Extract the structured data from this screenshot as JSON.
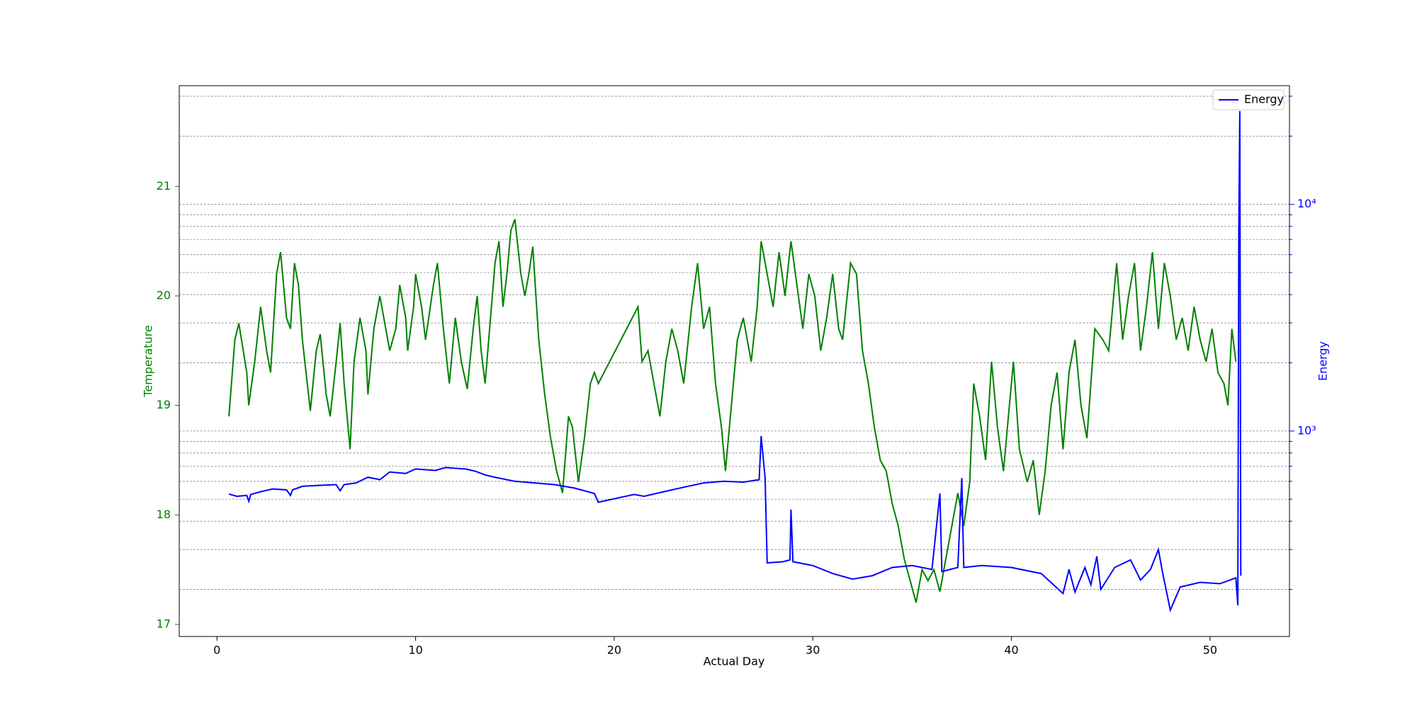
{
  "chart_data": {
    "type": "line",
    "xlabel": "Actual Day",
    "ylabel": "Temperature",
    "y2label": "Energy",
    "xlim": [
      -1.9,
      54.0
    ],
    "xticks": [
      0,
      10,
      20,
      30,
      40,
      50
    ],
    "ylim": [
      16.89,
      21.92
    ],
    "yticks": [
      17,
      18,
      19,
      20,
      21
    ],
    "ycolor": "green",
    "y2lim": [
      124,
      33400
    ],
    "y2log": true,
    "y2color": "blue",
    "y2ticks": [
      {
        "value": 1000,
        "label": "10³"
      },
      {
        "value": 10000,
        "label": "10⁴"
      }
    ],
    "y2minor_ticks": [
      200,
      300,
      400,
      500,
      600,
      700,
      800,
      900,
      2000,
      3000,
      4000,
      5000,
      6000,
      7000,
      8000,
      9000,
      20000,
      30000
    ],
    "grid_axis": "y2",
    "legend": "upper right",
    "series": [
      {
        "color": "green",
        "x": [
          0.6,
          0.9,
          1.1,
          1.5,
          1.6,
          1.9,
          2.2,
          2.5,
          2.7,
          3.0,
          3.2,
          3.5,
          3.7,
          3.9,
          4.1,
          4.3,
          4.7,
          5.0,
          5.2,
          5.5,
          5.7,
          6.0,
          6.2,
          6.4,
          6.6,
          6.7,
          6.9,
          7.2,
          7.5,
          7.6,
          7.9,
          8.2,
          8.4,
          8.7,
          9.0,
          9.2,
          9.5,
          9.6,
          9.9,
          10.0,
          10.3,
          10.5,
          10.9,
          11.1,
          11.4,
          11.7,
          12.0,
          12.3,
          12.6,
          12.9,
          13.1,
          13.3,
          13.5,
          14.0,
          14.2,
          14.4,
          14.6,
          14.8,
          15.0,
          15.3,
          15.5,
          15.7,
          15.9,
          16.2,
          16.5,
          16.8,
          17.1,
          17.4,
          17.7,
          17.9,
          18.2,
          18.5,
          18.8,
          19.0,
          19.2,
          21.2,
          21.4,
          21.7,
          22.0,
          22.3,
          22.6,
          22.9,
          23.2,
          23.5,
          23.9,
          24.2,
          24.5,
          24.8,
          25.1,
          25.4,
          25.6,
          25.9,
          26.2,
          26.5,
          26.9,
          27.2,
          27.4,
          27.7,
          28.0,
          28.3,
          28.6,
          28.9,
          29.2,
          29.5,
          29.8,
          30.1,
          30.4,
          30.7,
          31.0,
          31.3,
          31.5,
          31.9,
          32.2,
          32.5,
          32.8,
          33.1,
          33.4,
          33.7,
          34.0,
          34.3,
          34.6,
          34.9,
          35.2,
          35.5,
          35.8,
          36.1,
          36.4,
          36.7,
          37.0,
          37.3,
          37.6,
          37.9,
          38.1,
          38.4,
          38.7,
          39.0,
          39.3,
          39.6,
          39.9,
          40.1,
          40.4,
          40.8,
          41.1,
          41.4,
          41.7,
          42.0,
          42.3,
          42.6,
          42.9,
          43.2,
          43.5,
          43.8,
          44.2,
          44.6,
          44.9,
          45.3,
          45.6,
          45.9,
          46.2,
          46.5,
          46.8,
          47.1,
          47.4,
          47.7,
          48.0,
          48.3,
          48.6,
          48.9,
          49.2,
          49.5,
          49.8,
          50.1,
          50.4,
          50.7,
          50.9,
          51.1,
          51.3
        ],
        "values": [
          18.9,
          19.6,
          19.75,
          19.3,
          19.0,
          19.4,
          19.9,
          19.5,
          19.3,
          20.2,
          20.4,
          19.8,
          19.7,
          20.3,
          20.1,
          19.6,
          18.95,
          19.5,
          19.65,
          19.1,
          18.9,
          19.4,
          19.75,
          19.2,
          18.8,
          18.6,
          19.4,
          19.8,
          19.5,
          19.1,
          19.7,
          20.0,
          19.8,
          19.5,
          19.7,
          20.1,
          19.8,
          19.5,
          19.9,
          20.2,
          19.9,
          19.6,
          20.1,
          20.3,
          19.7,
          19.2,
          19.8,
          19.4,
          19.15,
          19.7,
          20.0,
          19.5,
          19.2,
          20.3,
          20.5,
          19.9,
          20.2,
          20.6,
          20.7,
          20.2,
          20.0,
          20.2,
          20.45,
          19.6,
          19.1,
          18.7,
          18.4,
          18.2,
          18.9,
          18.8,
          18.3,
          18.7,
          19.2,
          19.3,
          19.2,
          19.9,
          19.4,
          19.5,
          19.2,
          18.9,
          19.4,
          19.7,
          19.5,
          19.2,
          19.9,
          20.3,
          19.7,
          19.9,
          19.2,
          18.8,
          18.4,
          19.0,
          19.6,
          19.8,
          19.4,
          19.9,
          20.5,
          20.2,
          19.9,
          20.4,
          20.0,
          20.5,
          20.1,
          19.7,
          20.2,
          20.0,
          19.5,
          19.8,
          20.2,
          19.7,
          19.6,
          20.3,
          20.2,
          19.5,
          19.2,
          18.8,
          18.5,
          18.4,
          18.1,
          17.9,
          17.6,
          17.4,
          17.2,
          17.5,
          17.4,
          17.5,
          17.3,
          17.6,
          17.9,
          18.2,
          17.9,
          18.3,
          19.2,
          18.9,
          18.5,
          19.4,
          18.8,
          18.4,
          19.0,
          19.4,
          18.6,
          18.3,
          18.5,
          18.0,
          18.4,
          19.0,
          19.3,
          18.6,
          19.3,
          19.6,
          19.0,
          18.7,
          19.7,
          19.6,
          19.5,
          20.3,
          19.6,
          20.0,
          20.3,
          19.5,
          19.9,
          20.4,
          19.7,
          20.3,
          20.0,
          19.6,
          19.8,
          19.5,
          19.9,
          19.6,
          19.4,
          19.7,
          19.3,
          19.2,
          19.0,
          19.7,
          19.4
        ]
      },
      {
        "name": "Energy",
        "color": "blue",
        "axis": "y2",
        "x": [
          0.6,
          1.0,
          1.5,
          1.6,
          1.7,
          2.2,
          2.8,
          3.5,
          3.7,
          3.8,
          4.3,
          5.0,
          6.0,
          6.2,
          6.4,
          7.0,
          7.6,
          8.2,
          8.7,
          9.5,
          10.0,
          11.0,
          11.5,
          12.5,
          13.0,
          13.5,
          14.0,
          15.0,
          16.0,
          17.0,
          18.0,
          19.0,
          19.2,
          21.0,
          21.5,
          22.5,
          23.5,
          24.5,
          25.5,
          26.5,
          27.3,
          27.4,
          27.6,
          27.7,
          28.5,
          28.85,
          28.9,
          29.0,
          30.0,
          31.0,
          32.0,
          33.0,
          34.0,
          35.0,
          36.0,
          36.4,
          36.5,
          37.3,
          37.5,
          37.6,
          38.5,
          40.0,
          41.5,
          42.6,
          42.9,
          43.2,
          43.7,
          44.0,
          44.3,
          44.5,
          45.2,
          46.0,
          46.5,
          47.0,
          47.4,
          47.6,
          48.0,
          48.5,
          49.5,
          50.5,
          51.0,
          51.3,
          51.4,
          51.45,
          51.5,
          51.55
        ],
        "values": [
          527,
          515,
          520,
          490,
          525,
          540,
          555,
          550,
          520,
          550,
          570,
          575,
          580,
          545,
          580,
          590,
          625,
          610,
          660,
          650,
          680,
          670,
          690,
          680,
          665,
          640,
          625,
          600,
          590,
          580,
          560,
          530,
          485,
          525,
          515,
          540,
          565,
          590,
          600,
          595,
          610,
          950,
          620,
          262,
          265,
          270,
          450,
          265,
          255,
          235,
          222,
          230,
          250,
          255,
          245,
          530,
          240,
          250,
          620,
          250,
          255,
          250,
          235,
          192,
          245,
          195,
          250,
          210,
          280,
          200,
          250,
          270,
          220,
          245,
          300,
          240,
          162,
          205,
          215,
          212,
          220,
          225,
          170,
          8000,
          25800,
          230
        ]
      }
    ]
  }
}
